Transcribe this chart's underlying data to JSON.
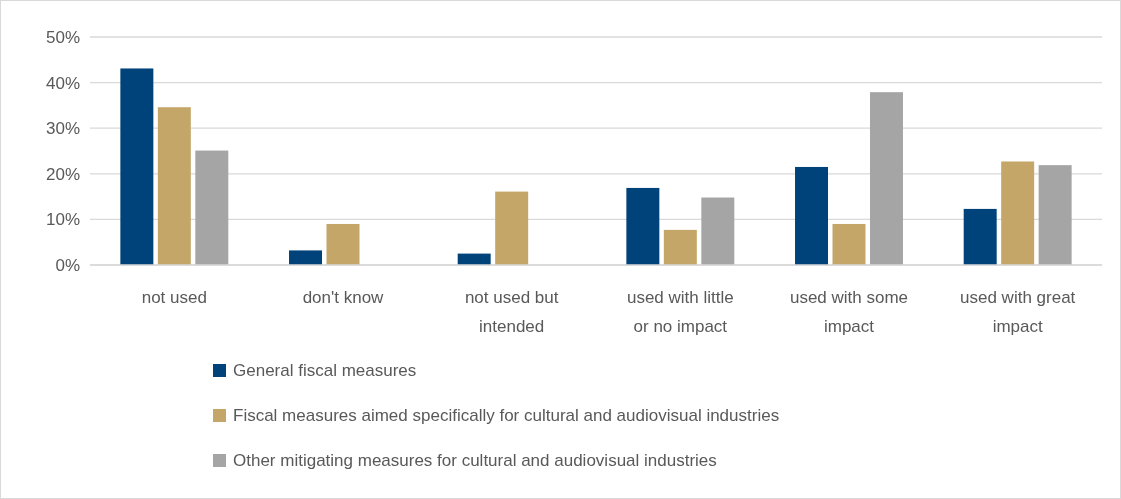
{
  "chart_data": {
    "type": "bar",
    "categories": [
      "not used",
      "don't know",
      "not used but intended",
      "used with little or no impact",
      "used with some impact",
      "used with great impact"
    ],
    "series": [
      {
        "name": "General fiscal measures",
        "color": "#00427a",
        "values": [
          43.1,
          3.2,
          2.5,
          16.9,
          21.5,
          12.3
        ]
      },
      {
        "name": "Fiscal measures aimed specifically for cultural and audiovisual industries",
        "color": "#c4a668",
        "values": [
          34.6,
          9.0,
          16.1,
          7.7,
          9.0,
          22.7
        ]
      },
      {
        "name": "Other mitigating measures for cultural and audiovisual industries",
        "color": "#a5a5a5",
        "values": [
          25.1,
          null,
          null,
          14.8,
          37.9,
          21.9
        ]
      }
    ],
    "ylim": [
      0,
      50
    ],
    "yticks": [
      {
        "value": 0,
        "label": "0%"
      },
      {
        "value": 10,
        "label": "10%"
      },
      {
        "value": 20,
        "label": "20%"
      },
      {
        "value": 30,
        "label": "30%"
      },
      {
        "value": 40,
        "label": "40%"
      },
      {
        "value": 50,
        "label": "50%"
      }
    ],
    "grid": "y",
    "legend": "bottom"
  }
}
